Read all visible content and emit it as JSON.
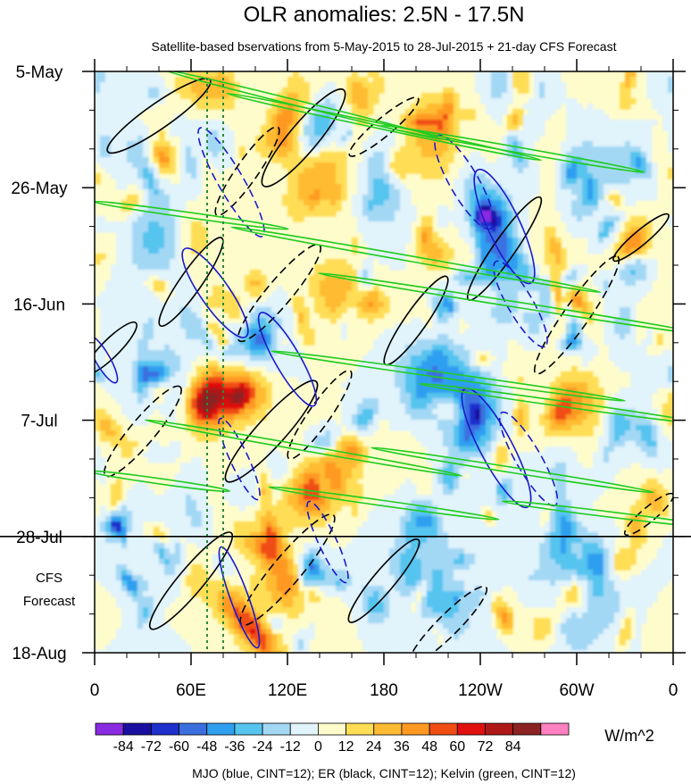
{
  "chart_data": {
    "type": "heatmap",
    "title": "OLR anomalies: 2.5N - 17.5N",
    "subtitle": "Satellite-based bservations from 5-May-2015 to 28-Jul-2015 + 21-day CFS Forecast",
    "y_tick_labels": [
      "5-May",
      "26-May",
      "16-Jun",
      "7-Jul",
      "28-Jul",
      "18-Aug"
    ],
    "y_tick_days": [
      0,
      21,
      42,
      63,
      84,
      105
    ],
    "x_tick_labels": [
      "0",
      "60E",
      "120E",
      "180",
      "120W",
      "60W",
      "0"
    ],
    "x_tick_lon": [
      0,
      60,
      120,
      180,
      240,
      300,
      360
    ],
    "xlim": [
      0,
      360
    ],
    "ylim_days": [
      0,
      105
    ],
    "forecast_start": "28-Jul",
    "forecast_label_lines": [
      "CFS",
      "Forecast"
    ],
    "colorbar": {
      "unit": "W/m^2",
      "labels": [
        "-84",
        "-72",
        "-60",
        "-48",
        "-36",
        "-24",
        "-12",
        "0",
        "12",
        "24",
        "36",
        "48",
        "60",
        "72",
        "84"
      ],
      "colors": [
        "#8a2be2",
        "#1a0fa0",
        "#1e2fcc",
        "#3b6fe0",
        "#2f9ff0",
        "#55c4ef",
        "#a3d8f5",
        "#e1f3fb",
        "#fffccc",
        "#ffdd55",
        "#ffbb33",
        "#ff9922",
        "#f04d13",
        "#e01010",
        "#b01818",
        "#8b2323",
        "#ff80c0"
      ]
    },
    "footer": "MJO (blue, CINT=12); ER (black, CINT=12); Kelvin (green, CINT=12)",
    "series": [
      {
        "name": "MJO",
        "color": "#1a1acc"
      },
      {
        "name": "ER",
        "color": "#000000"
      },
      {
        "name": "Kelvin",
        "color": "#22cc22"
      }
    ],
    "reference_lines_lon": [
      70,
      80
    ]
  },
  "colors": {
    "mjo": "#1a1acc",
    "er": "#000000",
    "kelvin": "#22cc22",
    "ref": "#2a8a3a"
  }
}
